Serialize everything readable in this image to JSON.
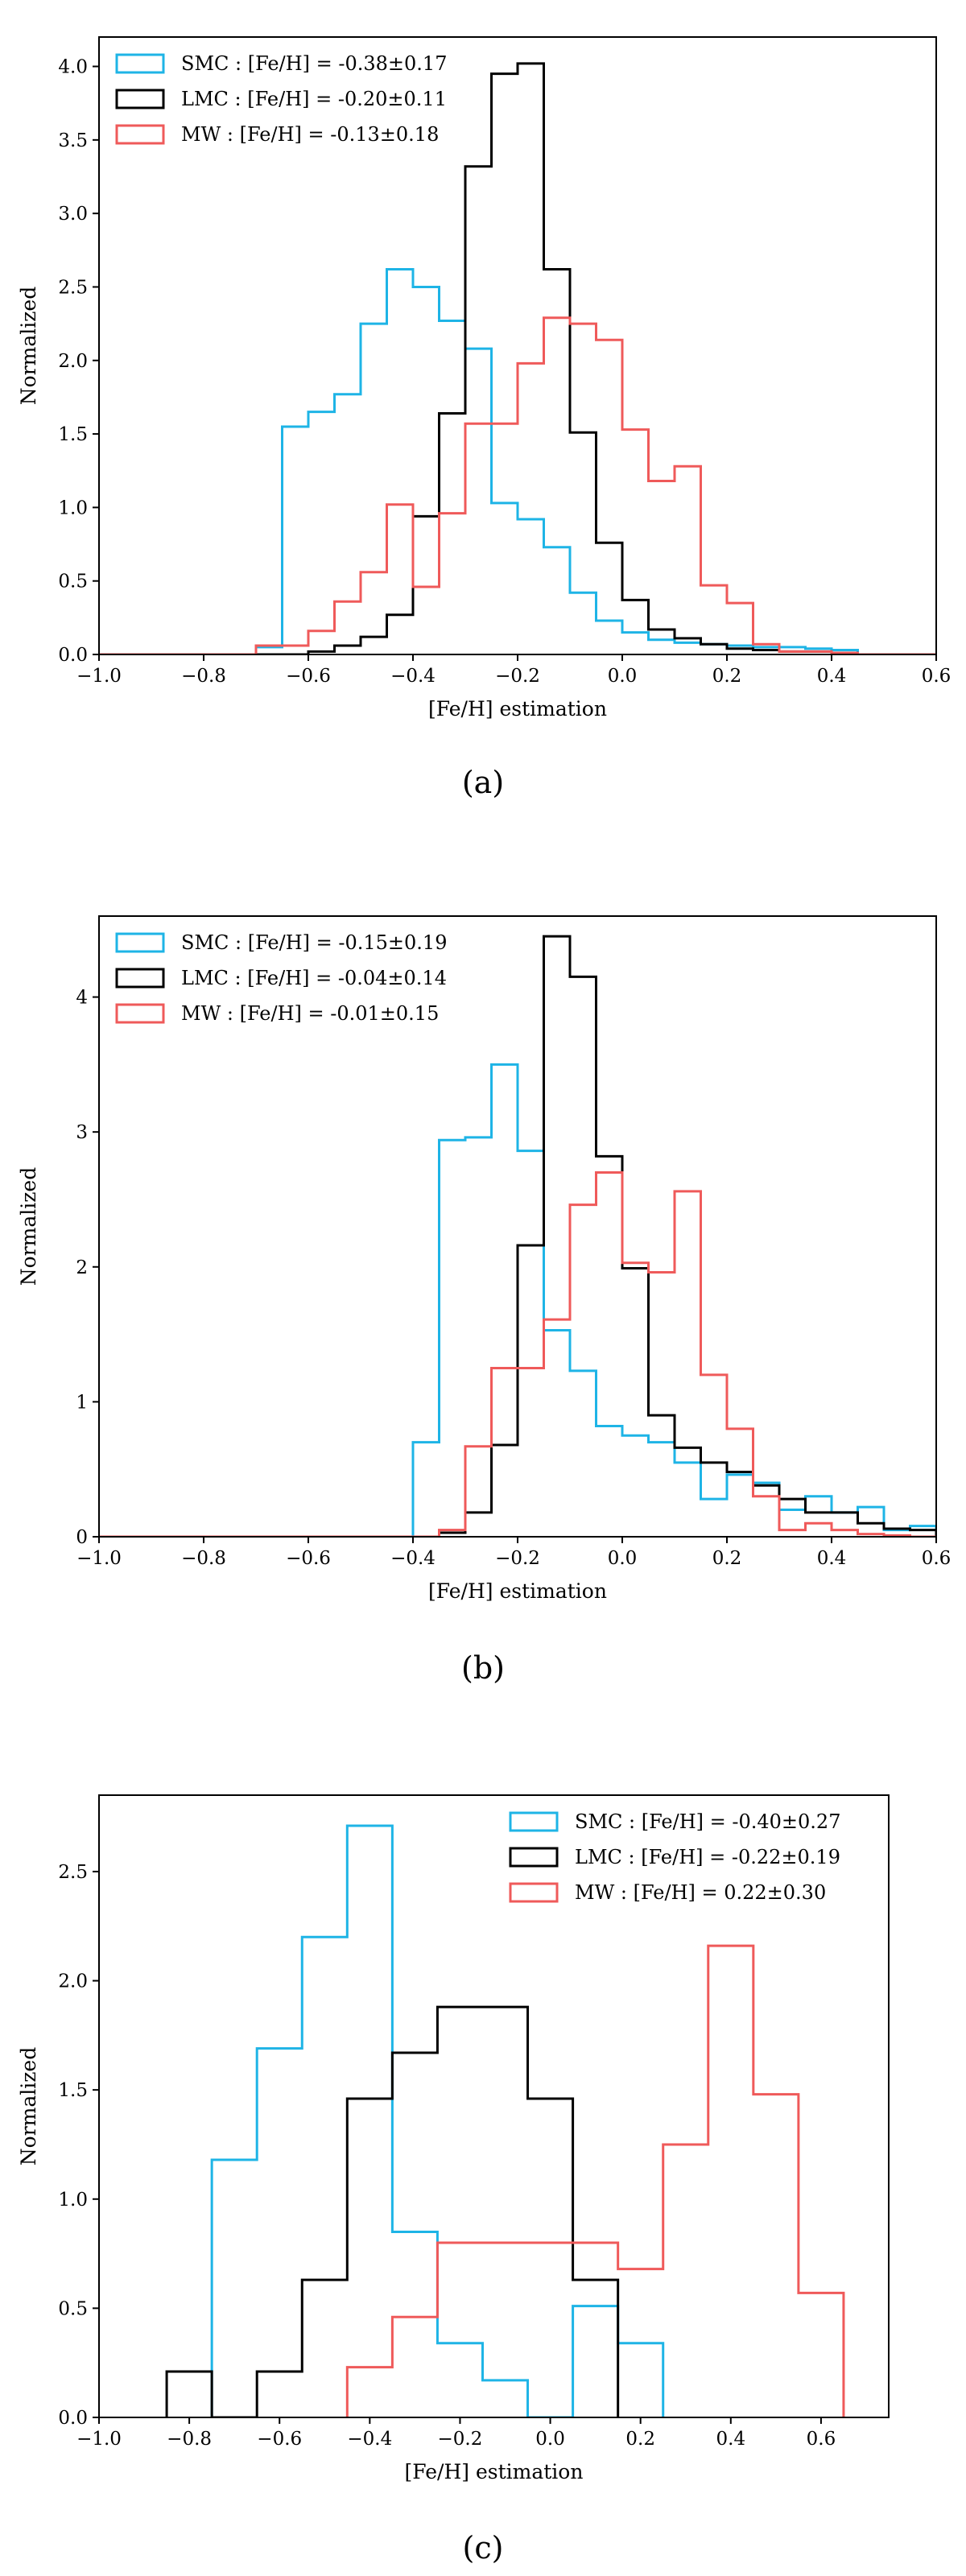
{
  "figure": {
    "panels": [
      "(a)",
      "(b)",
      "(c)"
    ]
  },
  "colors": {
    "SMC": "#1eb4e6",
    "LMC": "#000000",
    "MW": "#ef5a5a"
  },
  "chart_data": [
    {
      "type": "step-histogram",
      "caption": "(a)",
      "xlabel": "[Fe/H] estimation",
      "ylabel": "Normalized",
      "xlim": [
        -1.0,
        0.6
      ],
      "ylim": [
        0,
        4.2
      ],
      "xticks": [
        -1.0,
        -0.8,
        -0.6,
        -0.4,
        -0.2,
        0.0,
        0.2,
        0.4,
        0.6
      ],
      "xtick_labels": [
        "−1.0",
        "−0.8",
        "−0.6",
        "−0.4",
        "−0.2",
        "0.0",
        "0.2",
        "0.4",
        "0.6"
      ],
      "yticks": [
        0,
        0.5,
        1.0,
        1.5,
        2.0,
        2.5,
        3.0,
        3.5,
        4.0
      ],
      "ytick_labels": [
        "0.0",
        "0.5",
        "1.0",
        "1.5",
        "2.0",
        "2.5",
        "3.0",
        "3.5",
        "4.0"
      ],
      "legend_position": "upper left",
      "series": [
        {
          "name": "SMC",
          "label": "SMC : [Fe/H] = -0.38±0.17",
          "edges": [
            -1.0,
            -0.95,
            -0.9,
            -0.85,
            -0.8,
            -0.75,
            -0.7,
            -0.65,
            -0.6,
            -0.55,
            -0.5,
            -0.45,
            -0.4,
            -0.35,
            -0.3,
            -0.25,
            -0.2,
            -0.15,
            -0.1,
            -0.05,
            0.0,
            0.05,
            0.1,
            0.15,
            0.2,
            0.25,
            0.3,
            0.35,
            0.4,
            0.45,
            0.5,
            0.55,
            0.6
          ],
          "values": [
            0,
            0,
            0,
            0,
            0,
            0,
            0.05,
            1.55,
            1.65,
            1.77,
            2.25,
            2.62,
            2.5,
            2.27,
            2.08,
            1.03,
            0.92,
            0.73,
            0.42,
            0.23,
            0.15,
            0.1,
            0.08,
            0.07,
            0.06,
            0.05,
            0.05,
            0.04,
            0.03,
            0,
            0,
            0
          ]
        },
        {
          "name": "LMC",
          "label": "LMC : [Fe/H] = -0.20±0.11",
          "edges": [
            -1.0,
            -0.95,
            -0.9,
            -0.85,
            -0.8,
            -0.75,
            -0.7,
            -0.65,
            -0.6,
            -0.55,
            -0.5,
            -0.45,
            -0.4,
            -0.35,
            -0.3,
            -0.25,
            -0.2,
            -0.15,
            -0.1,
            -0.05,
            0.0,
            0.05,
            0.1,
            0.15,
            0.2,
            0.25,
            0.3,
            0.35,
            0.4,
            0.45,
            0.5,
            0.55,
            0.6
          ],
          "values": [
            0,
            0,
            0,
            0,
            0,
            0,
            0,
            0,
            0.02,
            0.06,
            0.12,
            0.27,
            0.94,
            1.64,
            3.32,
            3.95,
            4.02,
            2.62,
            1.51,
            0.76,
            0.37,
            0.17,
            0.11,
            0.07,
            0.04,
            0.03,
            0.02,
            0.02,
            0.01,
            0,
            0,
            0
          ]
        },
        {
          "name": "MW",
          "label": "MW : [Fe/H] = -0.13±0.18",
          "edges": [
            -1.0,
            -0.95,
            -0.9,
            -0.85,
            -0.8,
            -0.75,
            -0.7,
            -0.65,
            -0.6,
            -0.55,
            -0.5,
            -0.45,
            -0.4,
            -0.35,
            -0.3,
            -0.25,
            -0.2,
            -0.15,
            -0.1,
            -0.05,
            0.0,
            0.05,
            0.1,
            0.15,
            0.2,
            0.25,
            0.3,
            0.35,
            0.4,
            0.45,
            0.5,
            0.55,
            0.6
          ],
          "values": [
            0,
            0,
            0,
            0,
            0,
            0,
            0.06,
            0.06,
            0.16,
            0.36,
            0.56,
            1.02,
            0.46,
            0.96,
            1.57,
            1.57,
            1.98,
            2.29,
            2.25,
            2.14,
            1.53,
            1.18,
            1.28,
            0.47,
            0.35,
            0.07,
            0.02,
            0.02,
            0.01,
            0,
            0,
            0
          ]
        }
      ]
    },
    {
      "type": "step-histogram",
      "caption": "(b)",
      "xlabel": "[Fe/H] estimation",
      "ylabel": "Normalized",
      "xlim": [
        -1.0,
        0.6
      ],
      "ylim": [
        0,
        4.6
      ],
      "xticks": [
        -1.0,
        -0.8,
        -0.6,
        -0.4,
        -0.2,
        0.0,
        0.2,
        0.4,
        0.6
      ],
      "xtick_labels": [
        "−1.0",
        "−0.8",
        "−0.6",
        "−0.4",
        "−0.2",
        "0.0",
        "0.2",
        "0.4",
        "0.6"
      ],
      "yticks": [
        0,
        1,
        2,
        3,
        4
      ],
      "ytick_labels": [
        "0",
        "1",
        "2",
        "3",
        "4"
      ],
      "legend_position": "upper left",
      "series": [
        {
          "name": "SMC",
          "label": "SMC : [Fe/H] = -0.15±0.19",
          "edges": [
            -1.0,
            -0.95,
            -0.9,
            -0.85,
            -0.8,
            -0.75,
            -0.7,
            -0.65,
            -0.6,
            -0.55,
            -0.5,
            -0.45,
            -0.4,
            -0.35,
            -0.3,
            -0.25,
            -0.2,
            -0.15,
            -0.1,
            -0.05,
            0.0,
            0.05,
            0.1,
            0.15,
            0.2,
            0.25,
            0.3,
            0.35,
            0.4,
            0.45,
            0.5,
            0.55,
            0.6
          ],
          "values": [
            0,
            0,
            0,
            0,
            0,
            0,
            0,
            0,
            0,
            0,
            0,
            0,
            0.7,
            2.94,
            2.96,
            3.5,
            2.86,
            1.53,
            1.23,
            0.82,
            0.75,
            0.7,
            0.55,
            0.28,
            0.46,
            0.4,
            0.2,
            0.3,
            0.18,
            0.22,
            0.05,
            0.08
          ]
        },
        {
          "name": "LMC",
          "label": "LMC : [Fe/H] = -0.04±0.14",
          "edges": [
            -1.0,
            -0.95,
            -0.9,
            -0.85,
            -0.8,
            -0.75,
            -0.7,
            -0.65,
            -0.6,
            -0.55,
            -0.5,
            -0.45,
            -0.4,
            -0.35,
            -0.3,
            -0.25,
            -0.2,
            -0.15,
            -0.1,
            -0.05,
            0.0,
            0.05,
            0.1,
            0.15,
            0.2,
            0.25,
            0.3,
            0.35,
            0.4,
            0.45,
            0.5,
            0.55,
            0.6
          ],
          "values": [
            0,
            0,
            0,
            0,
            0,
            0,
            0,
            0,
            0,
            0,
            0,
            0,
            0,
            0.03,
            0.18,
            0.68,
            2.16,
            4.45,
            4.15,
            2.82,
            1.99,
            0.9,
            0.66,
            0.55,
            0.48,
            0.38,
            0.28,
            0.18,
            0.18,
            0.1,
            0.06,
            0.05
          ]
        },
        {
          "name": "MW",
          "label": "MW : [Fe/H] = -0.01±0.15",
          "edges": [
            -1.0,
            -0.95,
            -0.9,
            -0.85,
            -0.8,
            -0.75,
            -0.7,
            -0.65,
            -0.6,
            -0.55,
            -0.5,
            -0.45,
            -0.4,
            -0.35,
            -0.3,
            -0.25,
            -0.2,
            -0.15,
            -0.1,
            -0.05,
            0.0,
            0.05,
            0.1,
            0.15,
            0.2,
            0.25,
            0.3,
            0.35,
            0.4,
            0.45,
            0.5,
            0.55,
            0.6
          ],
          "values": [
            0,
            0,
            0,
            0,
            0,
            0,
            0,
            0,
            0,
            0,
            0,
            0,
            0,
            0.05,
            0.67,
            1.25,
            1.25,
            1.61,
            2.46,
            2.7,
            2.03,
            1.96,
            2.56,
            1.2,
            0.8,
            0.3,
            0.05,
            0.1,
            0.05,
            0.02,
            0.01,
            0
          ]
        }
      ]
    },
    {
      "type": "step-histogram",
      "caption": "(c)",
      "xlabel": "[Fe/H] estimation",
      "ylabel": "Normalized",
      "xlim": [
        -1.0,
        0.75
      ],
      "ylim": [
        0,
        2.85
      ],
      "xticks": [
        -1.0,
        -0.8,
        -0.6,
        -0.4,
        -0.2,
        0.0,
        0.2,
        0.4,
        0.6
      ],
      "xtick_labels": [
        "−1.0",
        "−0.8",
        "−0.6",
        "−0.4",
        "−0.2",
        "0.0",
        "0.2",
        "0.4",
        "0.6"
      ],
      "yticks": [
        0,
        0.5,
        1.0,
        1.5,
        2.0,
        2.5
      ],
      "ytick_labels": [
        "0.0",
        "0.5",
        "1.0",
        "1.5",
        "2.0",
        "2.5"
      ],
      "legend_position": "upper right",
      "series": [
        {
          "name": "SMC",
          "label": "SMC : [Fe/H] = -0.40±0.27",
          "edges": [
            -0.75,
            -0.65,
            -0.55,
            -0.45,
            -0.35,
            -0.25,
            -0.15,
            -0.05,
            0.05,
            0.15,
            0.25
          ],
          "values": [
            1.18,
            1.69,
            2.2,
            2.71,
            0.85,
            0.34,
            0.17,
            0,
            0.51,
            0.34
          ]
        },
        {
          "name": "LMC",
          "label": "LMC : [Fe/H] = -0.22±0.19",
          "edges": [
            -0.85,
            -0.75,
            -0.65,
            -0.55,
            -0.45,
            -0.35,
            -0.25,
            -0.15,
            -0.05,
            0.05,
            0.15
          ],
          "values": [
            0.21,
            0,
            0.21,
            0.63,
            1.46,
            1.67,
            1.88,
            1.88,
            1.46,
            0.63
          ]
        },
        {
          "name": "MW",
          "label": "MW : [Fe/H] = 0.22±0.30",
          "edges": [
            -0.45,
            -0.35,
            -0.25,
            -0.15,
            -0.05,
            0.05,
            0.15,
            0.25,
            0.35,
            0.45,
            0.55,
            0.65
          ],
          "values": [
            0.23,
            0.46,
            0.8,
            0.8,
            0.8,
            0.8,
            0.68,
            1.25,
            2.16,
            1.48,
            0.57
          ]
        }
      ]
    }
  ]
}
